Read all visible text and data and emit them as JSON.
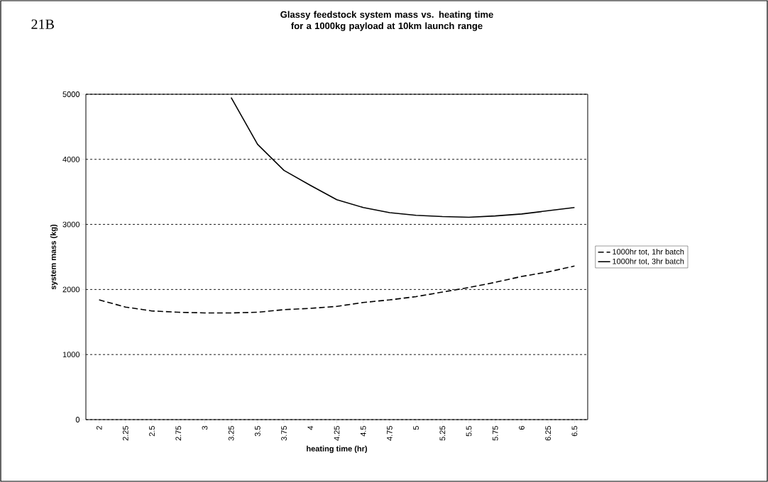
{
  "chart_data": {
    "type": "line",
    "title": "Glassy feedstock system mass vs. heating time for a 1000kg payload at 10km launch range",
    "xlabel": "heating time (hr)",
    "ylabel": "system mass (kg)",
    "annotations": [
      "21B"
    ],
    "categories": [
      "2",
      "2.25",
      "2.5",
      "2.75",
      "3",
      "3.25",
      "3.5",
      "3.75",
      "4",
      "4.25",
      "4.5",
      "4.75",
      "5",
      "5.25",
      "5.5",
      "5.75",
      "6",
      "6.25",
      "6.5"
    ],
    "series": [
      {
        "name": "1000hr tot, 1hr batch",
        "color": "#000000",
        "line_style": "dashed",
        "values": [
          1840,
          1730,
          1670,
          1650,
          1640,
          1640,
          1650,
          1690,
          1710,
          1740,
          1800,
          1840,
          1890,
          1960,
          2030,
          2110,
          2200,
          2270,
          2360
        ]
      },
      {
        "name": "1000hr tot, 3hr batch",
        "color": "#000000",
        "line_style": "solid",
        "values": [
          null,
          null,
          null,
          null,
          null,
          4950,
          4230,
          3830,
          3600,
          3380,
          3260,
          3180,
          3140,
          3120,
          3110,
          3130,
          3160,
          3210,
          3260
        ]
      }
    ],
    "ylim": [
      0,
      5000
    ],
    "yticks": [
      0,
      1000,
      2000,
      3000,
      4000,
      5000
    ],
    "grid": "y",
    "legend": "right",
    "marker": "none"
  }
}
